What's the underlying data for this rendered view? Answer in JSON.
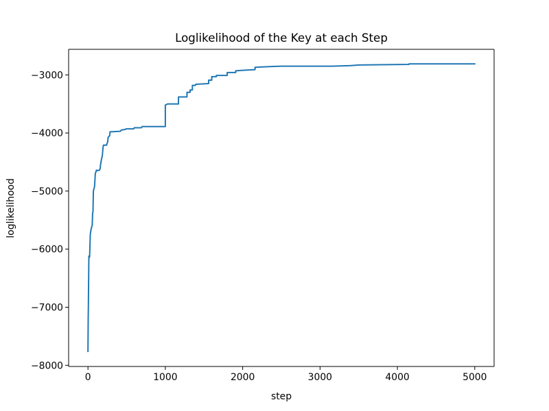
{
  "chart_data": {
    "type": "line",
    "title": "Loglikelihood of the Key at each Step",
    "xlabel": "step",
    "ylabel": "loglikelihood",
    "xlim": [
      -250,
      5250
    ],
    "ylim": [
      -8020,
      -2560
    ],
    "xticks": [
      0,
      1000,
      2000,
      3000,
      4000,
      5000
    ],
    "xtick_labels": [
      "0",
      "1000",
      "2000",
      "3000",
      "4000",
      "5000"
    ],
    "yticks": [
      -8000,
      -7000,
      -6000,
      -5000,
      -4000,
      -3000
    ],
    "ytick_labels": [
      "−8000",
      "−7000",
      "−6000",
      "−5000",
      "−4000",
      "−3000"
    ],
    "grid": false,
    "legend": "none",
    "series": [
      {
        "color": "#1f77b4",
        "x": [
          0,
          3,
          5,
          8,
          12,
          12,
          20,
          22,
          30,
          35,
          40,
          48,
          55,
          60,
          65,
          70,
          78,
          85,
          95,
          100,
          105,
          110,
          110,
          150,
          160,
          160,
          175,
          185,
          195,
          200,
          240,
          255,
          260,
          270,
          280,
          285,
          300,
          420,
          430,
          480,
          490,
          590,
          600,
          690,
          700,
          1000,
          1000,
          1030,
          1040,
          1170,
          1170,
          1280,
          1280,
          1320,
          1320,
          1350,
          1350,
          1390,
          1390,
          1400,
          1420,
          1560,
          1560,
          1600,
          1600,
          1660,
          1660,
          1800,
          1800,
          1910,
          1910,
          2020,
          2160,
          2160,
          2300,
          2400,
          2500,
          3150,
          3300,
          3400,
          3500,
          4150,
          4150,
          5000
        ],
        "y": [
          -7760,
          -7200,
          -7000,
          -6600,
          -6120,
          -6140,
          -6140,
          -6110,
          -5750,
          -5700,
          -5660,
          -5620,
          -5590,
          -5380,
          -5360,
          -5000,
          -4960,
          -4920,
          -4700,
          -4680,
          -4660,
          -4640,
          -4650,
          -4640,
          -4600,
          -4570,
          -4450,
          -4400,
          -4250,
          -4210,
          -4210,
          -4150,
          -4080,
          -4060,
          -4050,
          -3980,
          -3980,
          -3970,
          -3950,
          -3940,
          -3930,
          -3930,
          -3910,
          -3910,
          -3890,
          -3890,
          -3520,
          -3500,
          -3500,
          -3500,
          -3380,
          -3380,
          -3300,
          -3300,
          -3260,
          -3260,
          -3180,
          -3180,
          -3170,
          -3160,
          -3160,
          -3150,
          -3090,
          -3090,
          -3030,
          -3030,
          -3010,
          -3010,
          -2960,
          -2960,
          -2930,
          -2920,
          -2910,
          -2870,
          -2860,
          -2855,
          -2850,
          -2850,
          -2845,
          -2840,
          -2830,
          -2820,
          -2810,
          -2810
        ]
      }
    ]
  }
}
